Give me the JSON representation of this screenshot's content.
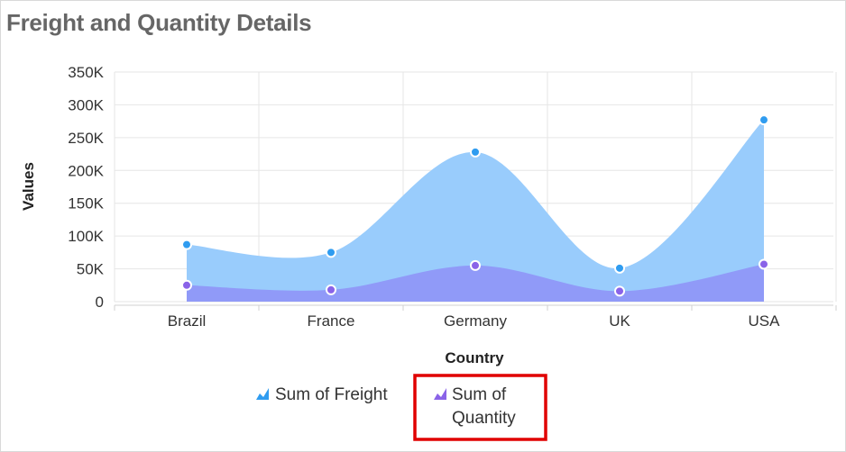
{
  "header": {
    "title": "Freight and Quantity Details"
  },
  "colors": {
    "freight_fill": "#99ccfc",
    "freight_marker": "#2f9cf0",
    "quantity_fill": "#8f97f8",
    "quantity_marker": "#8a63e8",
    "highlight_box": "#e00000",
    "grid": "#e6e6e6"
  },
  "chart_data": {
    "type": "area",
    "curve": "spline",
    "categories": [
      "Brazil",
      "France",
      "Germany",
      "UK",
      "USA"
    ],
    "xlabel": "Country",
    "ylabel": "Values",
    "ylim": [
      0,
      350000
    ],
    "yticks": [
      0,
      50000,
      100000,
      150000,
      200000,
      250000,
      300000,
      350000
    ],
    "ytick_labels": [
      "0",
      "50K",
      "100K",
      "150K",
      "200K",
      "250K",
      "300K",
      "350K"
    ],
    "grid": true,
    "legend": "bottom-center",
    "series": [
      {
        "name": "Sum of Freight",
        "values": [
          87000,
          75000,
          228000,
          51000,
          277000
        ]
      },
      {
        "name": "Sum of Quantity",
        "values": [
          25000,
          18000,
          55000,
          16000,
          57000
        ]
      }
    ]
  },
  "legend": {
    "items": [
      {
        "label": "Sum of Freight",
        "icon": "area-series-icon"
      },
      {
        "label_line1": "Sum of",
        "label_line2": "Quantity",
        "icon": "area-series-icon"
      }
    ]
  }
}
